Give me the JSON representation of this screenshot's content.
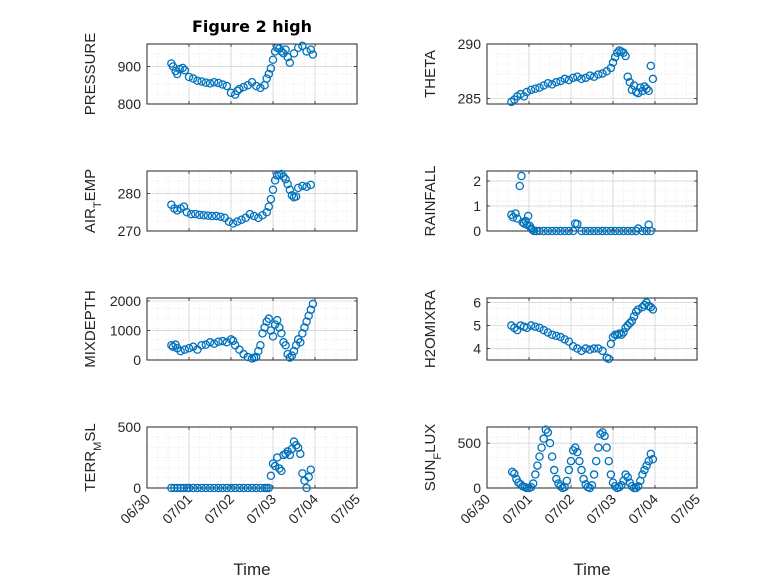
{
  "figure": {
    "title": "Figure 2 high"
  },
  "style": {
    "marker_color": "#0072BD",
    "axis_color": "#262626",
    "grid_color": "#cfcfcf"
  },
  "chart_data": [
    {
      "type": "scatter",
      "marker": "circle",
      "ylabel": "PRESSURE",
      "title": "Figure 2 high",
      "xlim": [
        0,
        5
      ],
      "ylim": [
        800,
        960
      ],
      "yticks": [
        800,
        900
      ],
      "xtick_labels": [],
      "xlabel": "",
      "grid": true,
      "x": [
        0.58,
        0.62,
        0.68,
        0.72,
        0.78,
        0.85,
        0.9,
        1.0,
        1.1,
        1.2,
        1.3,
        1.4,
        1.5,
        1.6,
        1.7,
        1.8,
        1.9,
        2.0,
        2.1,
        2.15,
        2.2,
        2.3,
        2.4,
        2.5,
        2.6,
        2.7,
        2.8,
        2.85,
        2.9,
        2.95,
        3.0,
        3.05,
        3.1,
        3.15,
        3.2,
        3.25,
        3.3,
        3.35,
        3.4,
        3.5,
        3.6,
        3.7,
        3.8,
        3.9,
        3.95
      ],
      "y": [
        908,
        900,
        888,
        880,
        893,
        896,
        890,
        872,
        868,
        862,
        860,
        857,
        855,
        858,
        856,
        852,
        848,
        830,
        825,
        835,
        840,
        845,
        850,
        858,
        848,
        843,
        850,
        868,
        880,
        895,
        918,
        940,
        950,
        948,
        940,
        935,
        945,
        925,
        910,
        935,
        950,
        955,
        940,
        945,
        932
      ]
    },
    {
      "type": "scatter",
      "marker": "circle",
      "ylabel": "THETA",
      "xlim": [
        0,
        5
      ],
      "ylim": [
        284.5,
        290
      ],
      "yticks": [
        285,
        290
      ],
      "xtick_labels": [],
      "xlabel": "",
      "grid": true,
      "x": [
        0.58,
        0.65,
        0.72,
        0.8,
        0.88,
        0.95,
        1.05,
        1.15,
        1.25,
        1.35,
        1.45,
        1.55,
        1.65,
        1.75,
        1.85,
        1.95,
        2.05,
        2.15,
        2.25,
        2.35,
        2.45,
        2.55,
        2.65,
        2.75,
        2.85,
        2.95,
        3.0,
        3.05,
        3.1,
        3.15,
        3.2,
        3.25,
        3.3,
        3.35,
        3.4,
        3.45,
        3.5,
        3.55,
        3.6,
        3.65,
        3.7,
        3.75,
        3.8,
        3.85,
        3.9,
        3.95
      ],
      "y": [
        284.7,
        284.9,
        285.2,
        285.4,
        285.2,
        285.6,
        285.8,
        285.9,
        286.0,
        286.2,
        286.4,
        286.3,
        286.5,
        286.6,
        286.8,
        286.7,
        286.9,
        287.0,
        286.8,
        286.9,
        287.1,
        287.0,
        287.2,
        287.3,
        287.5,
        287.8,
        288.3,
        288.8,
        289.2,
        289.4,
        289.3,
        289.2,
        288.9,
        287.0,
        286.5,
        285.8,
        286.2,
        285.6,
        285.5,
        286.0,
        285.7,
        286.1,
        285.9,
        285.7,
        288.0,
        286.8
      ]
    },
    {
      "type": "scatter",
      "marker": "circle",
      "ylabel": "AIR_TEMP",
      "xlim": [
        0,
        5
      ],
      "ylim": [
        270,
        286
      ],
      "yticks": [
        270,
        280
      ],
      "xtick_labels": [],
      "xlabel": "",
      "grid": true,
      "x": [
        0.58,
        0.65,
        0.72,
        0.8,
        0.88,
        0.95,
        1.05,
        1.15,
        1.25,
        1.35,
        1.45,
        1.55,
        1.65,
        1.75,
        1.85,
        1.95,
        2.05,
        2.15,
        2.25,
        2.35,
        2.45,
        2.55,
        2.65,
        2.75,
        2.85,
        2.9,
        2.95,
        3.0,
        3.05,
        3.1,
        3.15,
        3.2,
        3.25,
        3.3,
        3.35,
        3.4,
        3.45,
        3.5,
        3.55,
        3.6,
        3.7,
        3.8,
        3.9
      ],
      "y": [
        277,
        276,
        275.5,
        276,
        276.5,
        275,
        274.5,
        274.5,
        274.3,
        274.2,
        274.1,
        274.0,
        274.0,
        273.8,
        273.5,
        272.5,
        272.0,
        272.5,
        273.0,
        273.5,
        274.5,
        274.0,
        273.5,
        274.2,
        275.0,
        276.5,
        278.5,
        281.0,
        283.5,
        284.8,
        285.0,
        285.2,
        284.5,
        283.8,
        282.5,
        281.0,
        279.5,
        279.0,
        279.2,
        281.5,
        282.0,
        281.8,
        282.3
      ]
    },
    {
      "type": "scatter",
      "marker": "circle",
      "ylabel": "RAINFALL",
      "xlim": [
        0,
        5
      ],
      "ylim": [
        0,
        2.4
      ],
      "yticks": [
        0,
        1,
        2
      ],
      "xtick_labels": [],
      "xlabel": "",
      "grid": true,
      "x": [
        0.58,
        0.62,
        0.68,
        0.72,
        0.78,
        0.82,
        0.85,
        0.88,
        0.92,
        0.95,
        0.98,
        1.02,
        1.05,
        1.08,
        1.12,
        1.18,
        1.25,
        1.35,
        1.45,
        1.55,
        1.65,
        1.75,
        1.85,
        1.95,
        2.05,
        2.1,
        2.15,
        2.25,
        2.35,
        2.45,
        2.55,
        2.65,
        2.75,
        2.85,
        2.95,
        3.05,
        3.15,
        3.25,
        3.35,
        3.45,
        3.55,
        3.6,
        3.7,
        3.8,
        3.85,
        3.9
      ],
      "y": [
        0.65,
        0.55,
        0.7,
        0.5,
        1.8,
        2.2,
        0.35,
        0.3,
        0.4,
        0.25,
        0.6,
        0.2,
        0.1,
        0.05,
        0.0,
        0.0,
        0.0,
        0.0,
        0.0,
        0.0,
        0.0,
        0.0,
        0.0,
        0.0,
        0.0,
        0.3,
        0.28,
        0.0,
        0.0,
        0.0,
        0.0,
        0.0,
        0.0,
        0.0,
        0.0,
        0.0,
        0.0,
        0.0,
        0.0,
        0.0,
        0.0,
        0.1,
        0.0,
        0.0,
        0.25,
        0.0
      ]
    },
    {
      "type": "scatter",
      "marker": "circle",
      "ylabel": "MIXDEPTH",
      "xlim": [
        0,
        5
      ],
      "ylim": [
        0,
        2100
      ],
      "yticks": [
        0,
        1000,
        2000
      ],
      "xtick_labels": [],
      "xlabel": "",
      "grid": true,
      "x": [
        0.58,
        0.62,
        0.68,
        0.72,
        0.8,
        0.9,
        1.0,
        1.1,
        1.2,
        1.3,
        1.4,
        1.5,
        1.6,
        1.7,
        1.8,
        1.9,
        2.0,
        2.05,
        2.1,
        2.2,
        2.3,
        2.4,
        2.5,
        2.55,
        2.6,
        2.65,
        2.7,
        2.75,
        2.8,
        2.85,
        2.9,
        2.95,
        3.0,
        3.05,
        3.1,
        3.15,
        3.2,
        3.25,
        3.3,
        3.35,
        3.4,
        3.45,
        3.5,
        3.55,
        3.6,
        3.65,
        3.7,
        3.75,
        3.8,
        3.85,
        3.9,
        3.95
      ],
      "y": [
        500,
        450,
        520,
        400,
        300,
        350,
        400,
        450,
        350,
        500,
        520,
        600,
        550,
        620,
        640,
        600,
        700,
        650,
        500,
        350,
        200,
        100,
        50,
        80,
        100,
        300,
        500,
        900,
        1100,
        1300,
        1400,
        1000,
        800,
        1200,
        1350,
        1100,
        900,
        600,
        500,
        200,
        80,
        150,
        300,
        500,
        700,
        600,
        900,
        1100,
        1300,
        1500,
        1700,
        1900
      ]
    },
    {
      "type": "scatter",
      "marker": "circle",
      "ylabel": "H2OMIXRA",
      "xlim": [
        0,
        5
      ],
      "ylim": [
        3.5,
        6.2
      ],
      "yticks": [
        4,
        5,
        6
      ],
      "xtick_labels": [],
      "xlabel": "",
      "grid": true,
      "x": [
        0.58,
        0.65,
        0.72,
        0.8,
        0.88,
        0.95,
        1.05,
        1.15,
        1.25,
        1.35,
        1.45,
        1.55,
        1.65,
        1.75,
        1.85,
        1.95,
        2.05,
        2.15,
        2.25,
        2.35,
        2.45,
        2.55,
        2.65,
        2.75,
        2.85,
        2.9,
        2.95,
        3.0,
        3.05,
        3.1,
        3.15,
        3.2,
        3.25,
        3.3,
        3.35,
        3.4,
        3.45,
        3.5,
        3.55,
        3.6,
        3.7,
        3.75,
        3.8,
        3.85,
        3.9,
        3.95
      ],
      "y": [
        5.0,
        4.9,
        4.8,
        5.0,
        4.95,
        4.9,
        5.0,
        4.95,
        4.9,
        4.8,
        4.7,
        4.6,
        4.55,
        4.5,
        4.4,
        4.3,
        4.1,
        4.0,
        3.9,
        4.0,
        3.95,
        4.0,
        4.0,
        3.9,
        3.6,
        3.55,
        4.2,
        4.5,
        4.6,
        4.6,
        4.65,
        4.6,
        4.7,
        4.9,
        5.0,
        5.1,
        5.2,
        5.4,
        5.6,
        5.7,
        5.8,
        5.9,
        6.0,
        5.85,
        5.8,
        5.7
      ]
    },
    {
      "type": "scatter",
      "marker": "circle",
      "ylabel": "TERR_MSL",
      "xlim": [
        0,
        5
      ],
      "ylim": [
        0,
        500
      ],
      "yticks": [
        0,
        500
      ],
      "xtick_labels": [
        "06/30",
        "07/01",
        "07/02",
        "07/03",
        "07/04",
        "07/05"
      ],
      "xlabel": "Time",
      "grid": true,
      "x": [
        0.58,
        0.65,
        0.72,
        0.8,
        0.88,
        0.95,
        1.0,
        1.1,
        1.2,
        1.3,
        1.4,
        1.5,
        1.6,
        1.7,
        1.8,
        1.9,
        2.0,
        2.1,
        2.2,
        2.3,
        2.4,
        2.5,
        2.6,
        2.7,
        2.8,
        2.85,
        2.9,
        2.95,
        3.0,
        3.05,
        3.1,
        3.15,
        3.2,
        3.25,
        3.3,
        3.35,
        3.4,
        3.45,
        3.5,
        3.55,
        3.6,
        3.65,
        3.7,
        3.75,
        3.8,
        3.85,
        3.9
      ],
      "y": [
        0,
        0,
        0,
        0,
        0,
        0,
        0,
        0,
        0,
        0,
        0,
        0,
        0,
        0,
        0,
        0,
        0,
        0,
        0,
        0,
        0,
        0,
        0,
        0,
        0,
        0,
        0,
        100,
        200,
        180,
        250,
        160,
        140,
        270,
        280,
        300,
        270,
        320,
        380,
        350,
        330,
        280,
        120,
        60,
        0,
        90,
        150
      ]
    },
    {
      "type": "scatter",
      "marker": "circle",
      "ylabel": "SUN_FLUX",
      "xlim": [
        0,
        5
      ],
      "ylim": [
        0,
        680
      ],
      "yticks": [
        0,
        500
      ],
      "xtick_labels": [
        "06/30",
        "07/01",
        "07/02",
        "07/03",
        "07/04",
        "07/05"
      ],
      "xlabel": "Time",
      "grid": true,
      "x": [
        0.6,
        0.65,
        0.7,
        0.75,
        0.8,
        0.85,
        0.9,
        0.95,
        1.0,
        1.05,
        1.1,
        1.15,
        1.2,
        1.25,
        1.3,
        1.35,
        1.4,
        1.45,
        1.5,
        1.55,
        1.6,
        1.65,
        1.7,
        1.75,
        1.8,
        1.85,
        1.9,
        1.95,
        2.0,
        2.05,
        2.1,
        2.15,
        2.2,
        2.25,
        2.3,
        2.35,
        2.4,
        2.45,
        2.5,
        2.55,
        2.6,
        2.65,
        2.7,
        2.75,
        2.8,
        2.85,
        2.9,
        2.95,
        3.0,
        3.05,
        3.1,
        3.15,
        3.2,
        3.25,
        3.3,
        3.35,
        3.4,
        3.45,
        3.5,
        3.55,
        3.6,
        3.65,
        3.7,
        3.75,
        3.8,
        3.85,
        3.9,
        3.95
      ],
      "y": [
        180,
        160,
        100,
        60,
        40,
        20,
        10,
        0,
        0,
        10,
        50,
        150,
        250,
        350,
        450,
        550,
        650,
        620,
        500,
        350,
        200,
        100,
        50,
        20,
        0,
        10,
        80,
        200,
        300,
        420,
        450,
        400,
        300,
        200,
        100,
        40,
        10,
        0,
        30,
        150,
        300,
        450,
        600,
        620,
        580,
        450,
        300,
        150,
        60,
        20,
        0,
        10,
        30,
        80,
        150,
        120,
        60,
        20,
        0,
        0,
        20,
        80,
        150,
        200,
        250,
        300,
        380,
        320
      ]
    }
  ]
}
